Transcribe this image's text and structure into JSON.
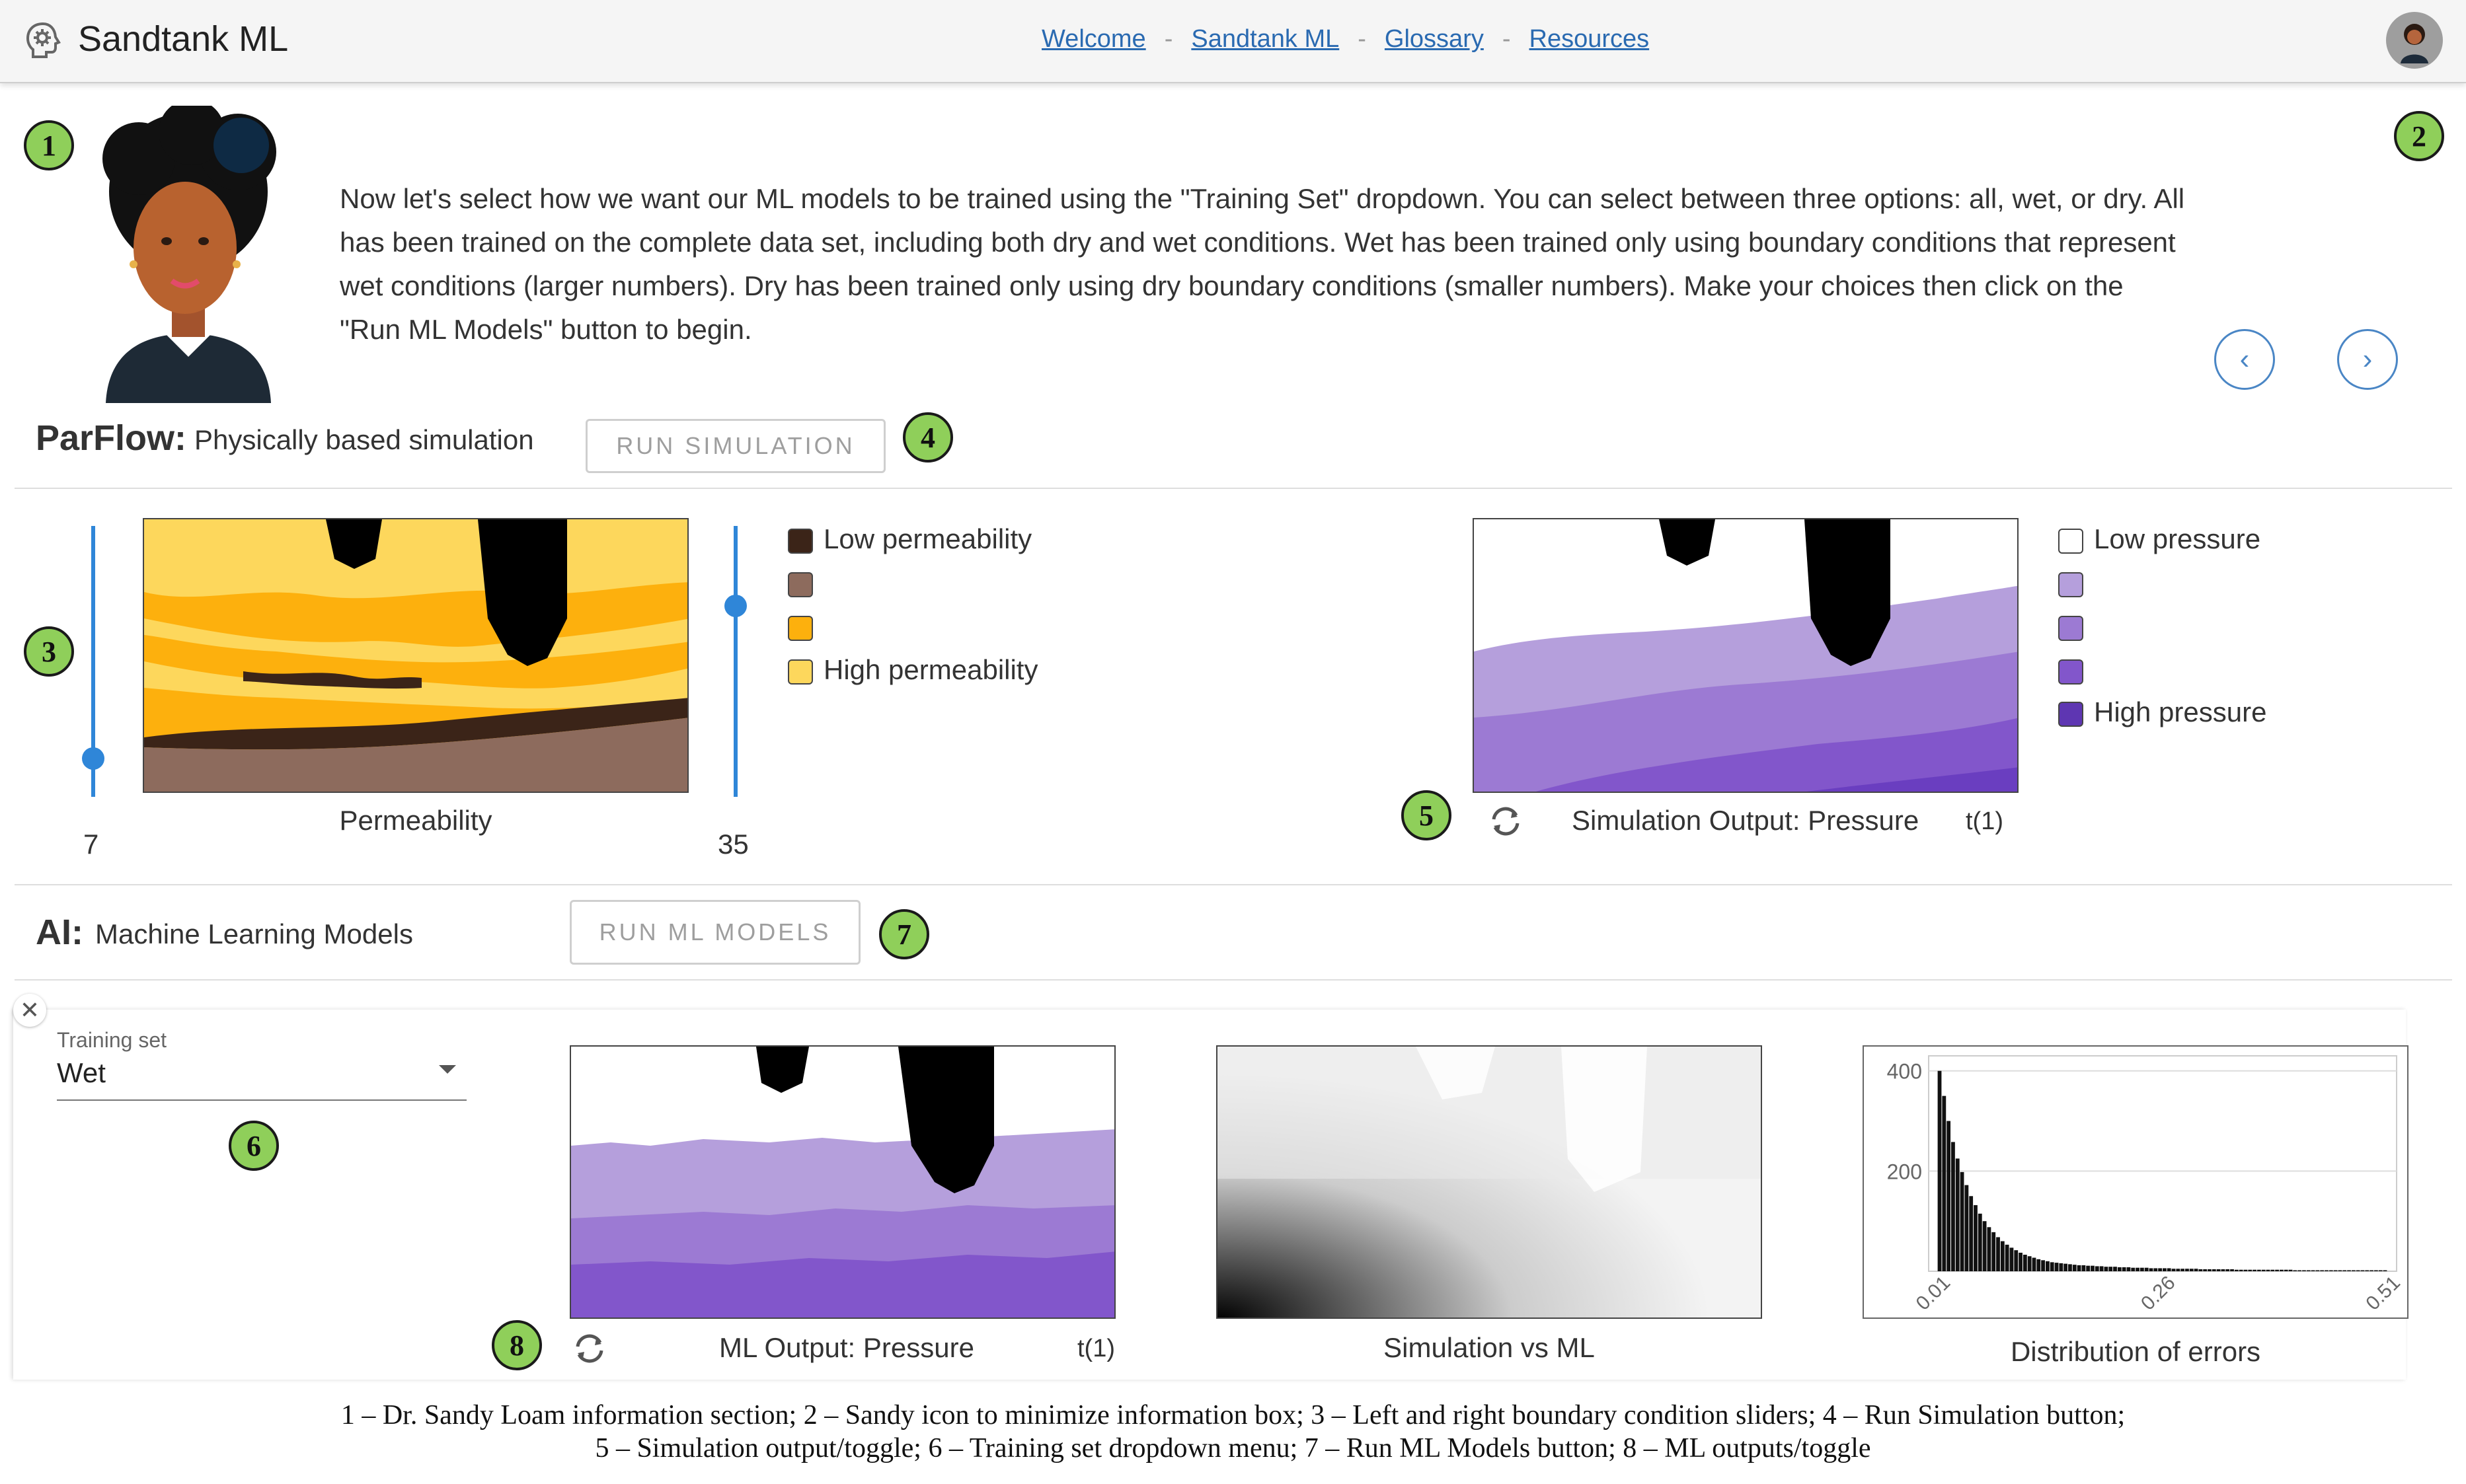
{
  "header": {
    "app_title": "Sandtank ML",
    "nav": [
      "Welcome",
      "Sandtank ML",
      "Glossary",
      "Resources"
    ],
    "nav_separator": "-"
  },
  "markers": [
    "1",
    "2",
    "3",
    "4",
    "5",
    "6",
    "7",
    "8"
  ],
  "info": {
    "text": "Now let's select how we want our ML models to be trained using the \"Training Set\" dropdown. You can select between three options: all, wet, or dry. All has been trained on the complete data set, including both dry and wet conditions. Wet has been trained only using boundary conditions that represent wet conditions (larger numbers). Dry has been trained only using dry boundary conditions (smaller numbers). Make your choices then click on the \"Run ML Models\" button to begin."
  },
  "parflow": {
    "title": "ParFlow:",
    "subtitle": "Physically based simulation",
    "run_button": "RUN SIMULATION",
    "left_slider_value": "7",
    "right_slider_value": "35",
    "permeability_caption": "Permeability",
    "permeability_legend": [
      "Low permeability",
      "",
      "",
      "High permeability"
    ],
    "permeability_colors": [
      "#3b2418",
      "#8d6b5d",
      "#fdb00d",
      "#fdd75c"
    ],
    "pressure_legend": [
      "Low pressure",
      "",
      "",
      "",
      "High pressure"
    ],
    "pressure_colors": [
      "#ffffff",
      "#b59fdc",
      "#9c7ad3",
      "#8256cb",
      "#5e36b2"
    ],
    "output_caption": "Simulation Output: Pressure",
    "output_time": "t(1)"
  },
  "ai": {
    "title": "AI:",
    "subtitle": "Machine Learning Models",
    "run_button": "RUN ML MODELS",
    "training_label": "Training set",
    "training_value": "Wet",
    "ml_caption": "ML Output: Pressure",
    "ml_time": "t(1)",
    "compare_caption": "Simulation vs ML",
    "errors_caption": "Distribution of errors"
  },
  "chart_data": {
    "type": "bar",
    "title": "Distribution of errors",
    "xlabel": "",
    "ylabel": "",
    "ylim": [
      0,
      430
    ],
    "xlim": [
      0.0,
      0.52
    ],
    "y_ticks": [
      200,
      400
    ],
    "x_ticks": [
      "0.01",
      "0.26",
      "0.51"
    ],
    "x_tick_values": [
      0.01,
      0.26,
      0.51
    ],
    "bin_start": 0.01,
    "bin_width": 0.005,
    "values": [
      400,
      350,
      300,
      258,
      225,
      198,
      172,
      150,
      132,
      115,
      100,
      88,
      78,
      68,
      60,
      53,
      47,
      42,
      37,
      33,
      30,
      27,
      24,
      22,
      20,
      18,
      17,
      16,
      15,
      14,
      13,
      12,
      12,
      11,
      11,
      10,
      10,
      9,
      9,
      9,
      8,
      8,
      8,
      7,
      7,
      7,
      7,
      6,
      6,
      6,
      6,
      6,
      5,
      5,
      5,
      5,
      5,
      5,
      4,
      4,
      4,
      4,
      4,
      4,
      4,
      4,
      3,
      3,
      3,
      3,
      3,
      3,
      3,
      3,
      3,
      3,
      3,
      3,
      3,
      2,
      2,
      2,
      2,
      2,
      2,
      2,
      2,
      2,
      2,
      2,
      2,
      2,
      2,
      2,
      2,
      2,
      2,
      2,
      2,
      2
    ],
    "grid": true,
    "bar_color": "#111111"
  },
  "footnote": {
    "line1": "1 – Dr. Sandy Loam information section; 2 – Sandy icon to minimize information box; 3 – Left and right boundary condition sliders; 4 – Run Simulation button;",
    "line2": "5 – Simulation output/toggle; 6 – Training set dropdown menu; 7 – Run ML Models button; 8 – ML outputs/toggle"
  },
  "icons": {
    "logo": "brain-gear-icon",
    "avatar": "user-avatar-icon",
    "prev": "chevron-left-icon",
    "next": "chevron-right-icon",
    "toggle": "cycle-toggle-icon",
    "close": "close-icon",
    "dropdown": "caret-down-icon"
  }
}
